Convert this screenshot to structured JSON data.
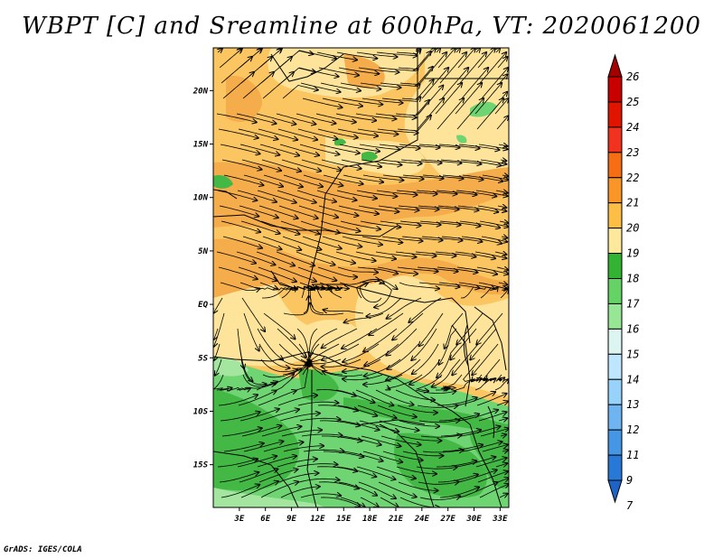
{
  "title": "WBPT [C] and Sreamline at 600hPa, VT: 2020061200",
  "footer": "GrADS: IGES/COLA",
  "map": {
    "lat_labels": [
      "20N",
      "15N",
      "10N",
      "5N",
      "EQ",
      "5S",
      "10S",
      "15S"
    ],
    "lat_values": [
      20,
      15,
      10,
      5,
      0,
      -5,
      -10,
      -15
    ],
    "lon_labels": [
      "3E",
      "6E",
      "9E",
      "12E",
      "15E",
      "18E",
      "21E",
      "24E",
      "27E",
      "30E",
      "33E"
    ],
    "lon_values": [
      3,
      6,
      9,
      12,
      15,
      18,
      21,
      24,
      27,
      30,
      33
    ],
    "lat_range": [
      -19,
      24
    ],
    "lon_range": [
      0,
      34
    ]
  },
  "colorbar": {
    "labels": [
      "26",
      "25",
      "24",
      "23",
      "22",
      "21",
      "20",
      "19",
      "18",
      "17",
      "16",
      "15",
      "14",
      "13",
      "12",
      "11",
      "9",
      "7"
    ],
    "colors": [
      "#a50000",
      "#c80000",
      "#e11400",
      "#f0321e",
      "#f56e14",
      "#fa9628",
      "#fdbe46",
      "#fde89c",
      "#32b432",
      "#64d264",
      "#96e696",
      "#dcf5f0",
      "#bee6ff",
      "#96d2fa",
      "#6eb4f0",
      "#4696e6",
      "#2878d7",
      "#1e64c8"
    ]
  },
  "colors": {
    "warm_dark": "#f5ac4a",
    "warm_mid": "#fbc662",
    "warm_light": "#fde49a",
    "green_dark": "#44b845",
    "green_mid": "#6fd472",
    "green_light": "#a4e6a0"
  }
}
